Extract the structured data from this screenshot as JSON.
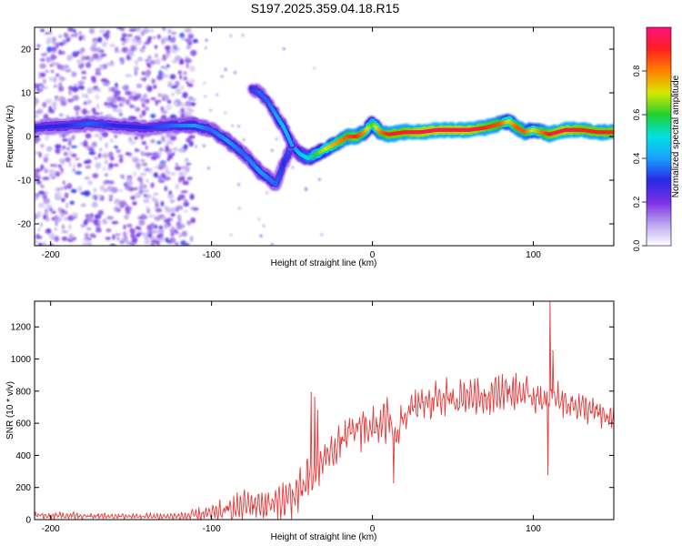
{
  "title": "S197.2025.359.04.18.R15",
  "chart_data": [
    {
      "type": "heatmap",
      "xlabel": "Height of straight line (km)",
      "ylabel": "Frequency (Hz)",
      "xlim": [
        -210,
        150
      ],
      "ylim": [
        -25,
        25
      ],
      "xticks": [
        -200,
        -100,
        0,
        100
      ],
      "yticks": [
        -20,
        -10,
        0,
        10,
        20
      ],
      "grid": false,
      "colorbar": {
        "label": "Normalized spectral amplitude",
        "range": [
          0,
          1
        ],
        "ticks": [
          "0.0",
          "0.2",
          "0.4",
          "0.6",
          "0.8"
        ],
        "tick_values": [
          0,
          0.2,
          0.4,
          0.6,
          0.8
        ],
        "colors": [
          "#ffffff",
          "#b9a3ef",
          "#7a2fe6",
          "#2a2ae6",
          "#1aa0ff",
          "#00e0e0",
          "#20d030",
          "#d8e800",
          "#ff8000",
          "#ff2020",
          "#ff1080"
        ]
      },
      "ridge": {
        "x": [
          -210,
          -190,
          -175,
          -160,
          -140,
          -125,
          -110,
          -100,
          -90,
          -80,
          -70,
          -60,
          -55,
          -50,
          -45,
          -40,
          -35,
          -25,
          -15,
          -10,
          -5,
          0,
          5,
          10,
          20,
          30,
          40,
          50,
          60,
          70,
          80,
          85,
          90,
          95,
          100,
          110,
          120,
          130,
          140,
          150
        ],
        "y": [
          2,
          2.5,
          3,
          2.5,
          2,
          2.5,
          2.5,
          1.5,
          -1,
          -4,
          -8,
          -11,
          -6,
          -2,
          -4,
          -5,
          -4,
          -2,
          0,
          0,
          1,
          3,
          1,
          0.5,
          1,
          1,
          1.5,
          1.5,
          1.5,
          2,
          3,
          3.5,
          2,
          1,
          1.5,
          0.5,
          1.5,
          1.5,
          1,
          1
        ],
        "amplitude": [
          0.3,
          0.3,
          0.35,
          0.3,
          0.3,
          0.35,
          0.4,
          0.35,
          0.4,
          0.35,
          0.4,
          0.35,
          0.3,
          0.35,
          0.45,
          0.5,
          0.6,
          0.75,
          0.85,
          0.9,
          0.8,
          0.6,
          0.8,
          0.9,
          0.9,
          0.95,
          0.95,
          0.95,
          0.95,
          0.9,
          0.85,
          0.7,
          0.85,
          0.85,
          0.7,
          0.9,
          0.95,
          0.9,
          0.9,
          0.9
        ]
      },
      "branch": {
        "x": [
          -75,
          -70,
          -65,
          -60,
          -55,
          -50
        ],
        "y": [
          11,
          10,
          8,
          5,
          2,
          -2
        ],
        "amplitude": [
          0.3,
          0.35,
          0.35,
          0.4,
          0.45,
          0.4
        ]
      }
    },
    {
      "type": "line",
      "xlabel": "Height of straight line (km)",
      "ylabel": "SNR (10 * v/v)",
      "xlim": [
        -210,
        150
      ],
      "ylim": [
        0,
        1360
      ],
      "xticks": [
        -200,
        -100,
        0,
        100
      ],
      "yticks": [
        0,
        200,
        400,
        600,
        800,
        1000,
        1200
      ],
      "grid": false,
      "color": "#e83838",
      "series": [
        {
          "name": "SNR",
          "x": [
            -210,
            -180,
            -150,
            -120,
            -105,
            -95,
            -85,
            -75,
            -65,
            -55,
            -45,
            -40,
            -35,
            -30,
            -25,
            -20,
            -15,
            -10,
            -5,
            0,
            10,
            15,
            20,
            30,
            40,
            50,
            60,
            70,
            80,
            90,
            100,
            105,
            110,
            115,
            120,
            130,
            140,
            150
          ],
          "y": [
            25,
            22,
            20,
            20,
            28,
            45,
            70,
            100,
            90,
            120,
            170,
            240,
            300,
            380,
            430,
            480,
            520,
            560,
            600,
            560,
            620,
            500,
            650,
            720,
            760,
            740,
            780,
            760,
            800,
            790,
            770,
            750,
            730,
            760,
            730,
            700,
            660,
            620
          ],
          "noise": [
            30,
            25,
            20,
            25,
            60,
            80,
            100,
            120,
            110,
            140,
            160,
            180,
            150,
            120,
            120,
            130,
            150,
            180,
            160,
            150,
            150,
            150,
            140,
            130,
            160,
            130,
            120,
            120,
            130,
            130,
            120,
            120,
            130,
            120,
            110,
            100,
            100,
            100
          ]
        }
      ],
      "spikes": [
        {
          "x": -38,
          "y": 790
        },
        {
          "x": -36,
          "y": 760
        },
        {
          "x": -34,
          "y": 680
        },
        {
          "x": 13,
          "y": 230
        },
        {
          "x": 109,
          "y": 280
        },
        {
          "x": 110.5,
          "y": 1360
        },
        {
          "x": 112,
          "y": 1050
        }
      ]
    }
  ]
}
